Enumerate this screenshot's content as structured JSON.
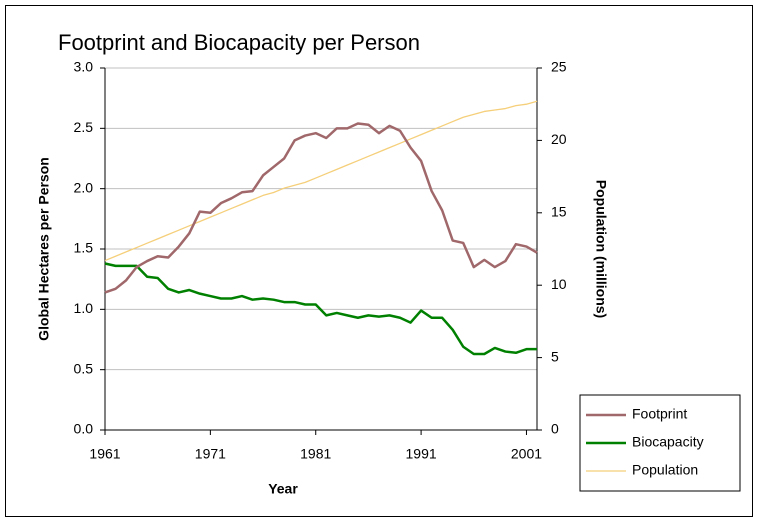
{
  "chart_data": {
    "type": "line",
    "title": "Footprint and Biocapacity per Person",
    "xlabel": "Year",
    "ylabel": "Global Hectares per Person",
    "y2label": "Population (millions)",
    "x": [
      1961,
      1962,
      1963,
      1964,
      1965,
      1966,
      1967,
      1968,
      1969,
      1970,
      1971,
      1972,
      1973,
      1974,
      1975,
      1976,
      1977,
      1978,
      1979,
      1980,
      1981,
      1982,
      1983,
      1984,
      1985,
      1986,
      1987,
      1988,
      1989,
      1990,
      1991,
      1992,
      1993,
      1994,
      1995,
      1996,
      1997,
      1998,
      1999,
      2000,
      2001,
      2002
    ],
    "xlim": [
      1961,
      2002
    ],
    "xticks": [
      1961,
      1971,
      1981,
      1991,
      2001
    ],
    "ylim": [
      0,
      3
    ],
    "yticks": [
      {
        "value": 0,
        "label": "0.0"
      },
      0.5,
      {
        "value": 1,
        "label": "1.0"
      },
      1.5,
      {
        "value": 2,
        "label": "2.0"
      },
      2.5,
      {
        "value": 3,
        "label": "3.0"
      }
    ],
    "y2lim": [
      0,
      25
    ],
    "y2ticks": [
      0,
      5,
      10,
      15,
      20,
      25
    ],
    "grid": true,
    "legend": "right",
    "series": [
      {
        "name": "Footprint",
        "color": "#a0686a",
        "values": [
          1.14,
          1.17,
          1.24,
          1.35,
          1.4,
          1.44,
          1.43,
          1.52,
          1.63,
          1.81,
          1.8,
          1.88,
          1.92,
          1.97,
          1.98,
          2.11,
          2.18,
          2.25,
          2.4,
          2.44,
          2.46,
          2.42,
          2.5,
          2.5,
          2.54,
          2.53,
          2.46,
          2.52,
          2.48,
          2.34,
          2.23,
          1.98,
          1.82,
          1.57,
          1.55,
          1.35,
          1.41,
          1.35,
          1.4,
          1.54,
          1.52,
          1.47
        ]
      },
      {
        "name": "Biocapacity",
        "color": "#008000",
        "values": [
          1.38,
          1.36,
          1.36,
          1.36,
          1.27,
          1.26,
          1.17,
          1.14,
          1.16,
          1.13,
          1.11,
          1.09,
          1.09,
          1.11,
          1.08,
          1.09,
          1.08,
          1.06,
          1.06,
          1.04,
          1.04,
          0.95,
          0.97,
          0.95,
          0.93,
          0.95,
          0.94,
          0.95,
          0.93,
          0.89,
          0.99,
          0.93,
          0.93,
          0.83,
          0.69,
          0.63,
          0.63,
          0.68,
          0.65,
          0.64,
          0.67,
          0.67
        ]
      },
      {
        "name": "Population",
        "color": "#f5cf7a",
        "axis": "y2",
        "values": [
          11.7,
          12.0,
          12.3,
          12.6,
          12.9,
          13.2,
          13.5,
          13.8,
          14.1,
          14.4,
          14.7,
          15.0,
          15.3,
          15.6,
          15.9,
          16.2,
          16.4,
          16.7,
          16.9,
          17.1,
          17.4,
          17.7,
          18.0,
          18.3,
          18.6,
          18.9,
          19.2,
          19.5,
          19.8,
          20.1,
          20.4,
          20.7,
          21.0,
          21.3,
          21.6,
          21.8,
          22.0,
          22.1,
          22.2,
          22.4,
          22.5,
          22.7
        ]
      }
    ]
  }
}
